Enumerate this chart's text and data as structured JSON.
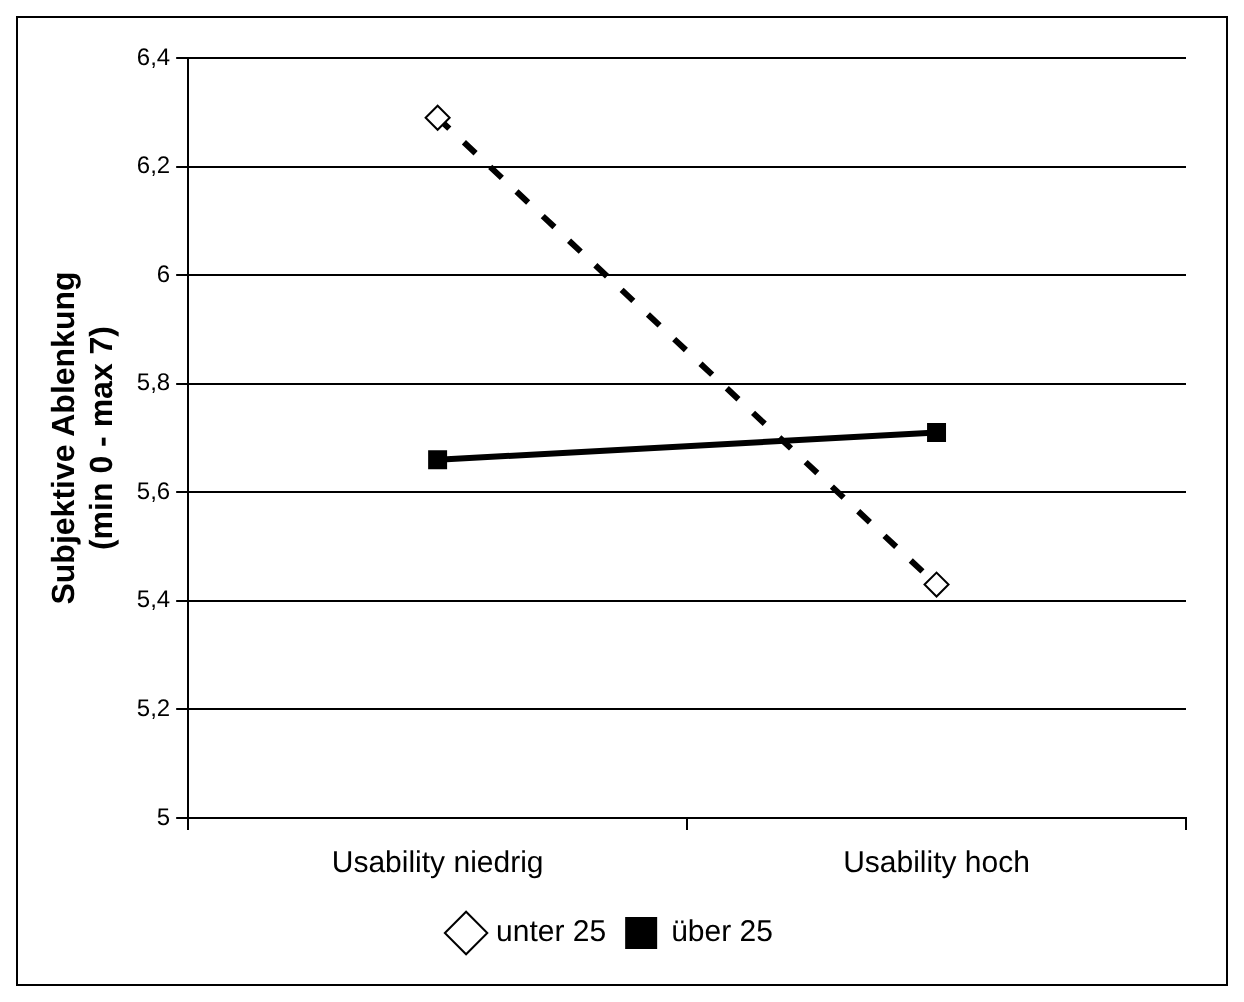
{
  "chart_data": {
    "type": "line",
    "ylabel": "Subjektive Ablenkung\n(min 0 - max 7)",
    "categories": [
      "Usability niedrig",
      "Usability hoch"
    ],
    "series": [
      {
        "name": "unter 25",
        "color": "#000000",
        "values": [
          6.29,
          5.43
        ],
        "marker": "diamond",
        "line_style": "dashed"
      },
      {
        "name": "über 25",
        "color": "#000000",
        "values": [
          5.66,
          5.71
        ],
        "marker": "square",
        "line_style": "solid"
      }
    ],
    "ylim": [
      5,
      6.4
    ],
    "yticks": [
      5,
      {
        "value": 5.2,
        "label": "5,2"
      },
      {
        "value": 5.4,
        "label": "5,4"
      },
      {
        "value": 5.6,
        "label": "5,6"
      },
      {
        "value": 5.8,
        "label": "5,8"
      },
      6,
      {
        "value": 6.2,
        "label": "6,2"
      },
      {
        "value": 6.4,
        "label": "6,4"
      }
    ],
    "grid": "y",
    "legend": "bottom"
  }
}
